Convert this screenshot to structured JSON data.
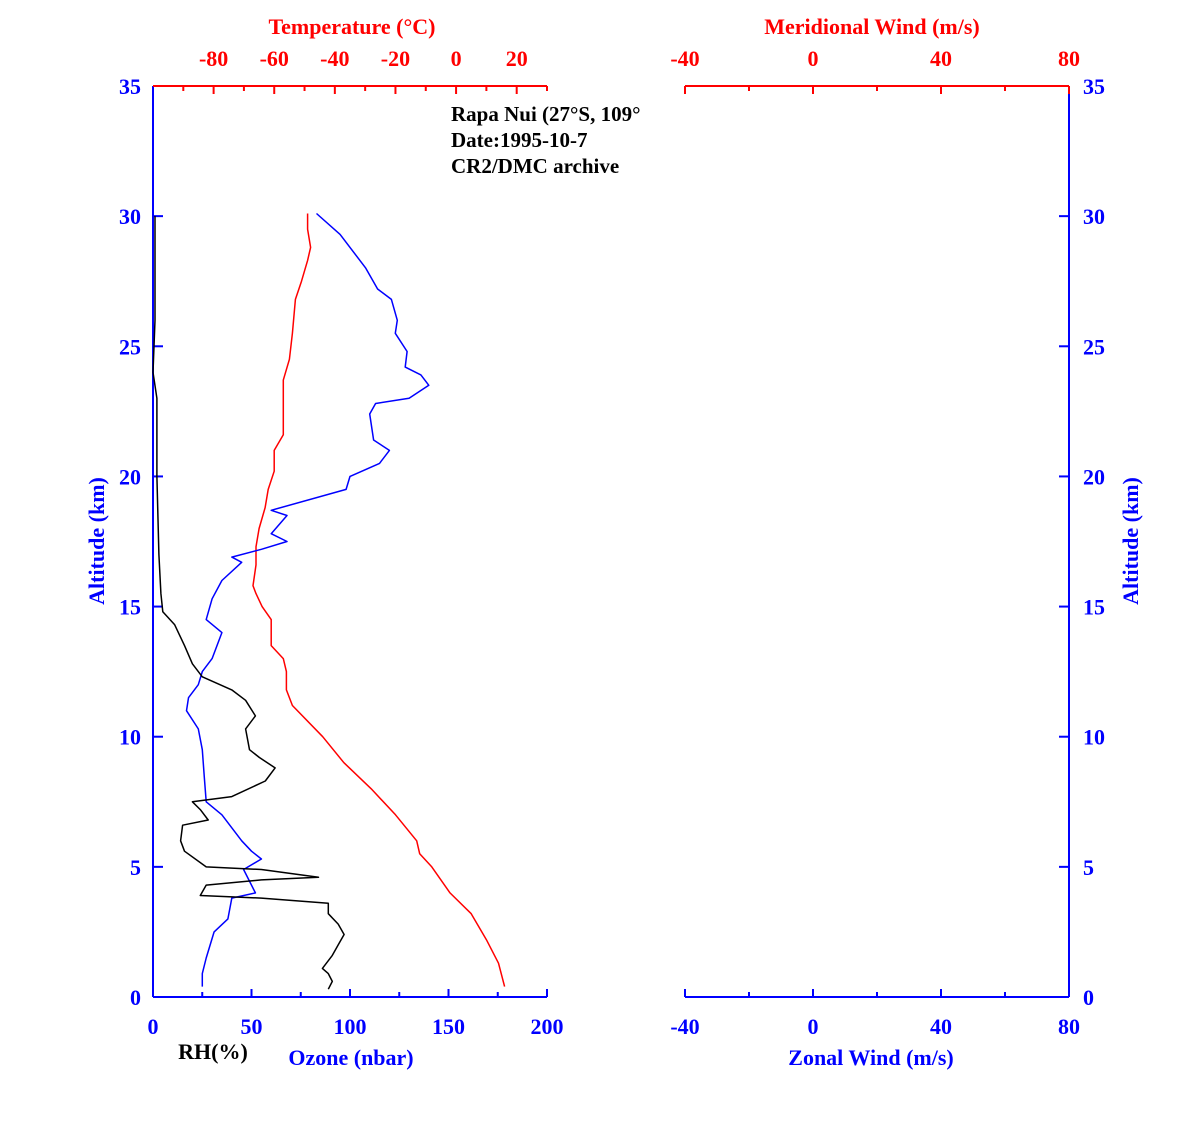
{
  "colors": {
    "blue": "#0000ff",
    "red": "#ff0000",
    "black": "#000000"
  },
  "annotation": {
    "station": "Rapa Nui (27°S, 109°",
    "date": "Date:1995-10-7",
    "archive": "CR2/DMC archive"
  },
  "chart_data": [
    {
      "type": "line",
      "panel": "left",
      "y_axis": {
        "label": "Altitude (km)",
        "range": [
          0,
          35
        ],
        "ticks": [
          "0",
          "5",
          "10",
          "15",
          "20",
          "25",
          "30",
          "35"
        ]
      },
      "x_bottom": {
        "label": "Ozone (nbar)",
        "secondary_label": "RH(%)",
        "range": [
          0,
          200
        ],
        "ticks": [
          "0",
          "50",
          "100",
          "150",
          "200"
        ]
      },
      "x_top": {
        "label": "Temperature (°C)",
        "range": [
          -100,
          30
        ],
        "ticks": [
          "-80",
          "-60",
          "-40",
          "-20",
          "0",
          "20"
        ]
      },
      "series": [
        {
          "color": "red",
          "scale": "temperature",
          "points": [
            [
              -49,
              30.1
            ],
            [
              -49,
              29.5
            ],
            [
              -48,
              28.8
            ],
            [
              -49,
              28.3
            ],
            [
              -51,
              27.5
            ],
            [
              -53,
              26.8
            ],
            [
              -54,
              25.5
            ],
            [
              -55,
              24.5
            ],
            [
              -57,
              23.7
            ],
            [
              -57,
              23.0
            ],
            [
              -57,
              22.3
            ],
            [
              -57,
              21.6
            ],
            [
              -60,
              21.0
            ],
            [
              -60,
              20.2
            ],
            [
              -62,
              19.5
            ],
            [
              -63,
              18.8
            ],
            [
              -65,
              18.0
            ],
            [
              -66,
              17.3
            ],
            [
              -66,
              16.6
            ],
            [
              -67,
              15.8
            ],
            [
              -66,
              15.5
            ],
            [
              -64,
              15.0
            ],
            [
              -61,
              14.5
            ],
            [
              -61,
              13.5
            ],
            [
              -57,
              13.0
            ],
            [
              -56,
              12.5
            ],
            [
              -56,
              11.8
            ],
            [
              -54,
              11.2
            ],
            [
              -44,
              10.0
            ],
            [
              -37,
              9.0
            ],
            [
              -28,
              8.0
            ],
            [
              -20,
              7.0
            ],
            [
              -13,
              6.0
            ],
            [
              -12,
              5.5
            ],
            [
              -8,
              5.0
            ],
            [
              -2,
              4.0
            ],
            [
              5,
              3.2
            ],
            [
              10,
              2.2
            ],
            [
              14,
              1.3
            ],
            [
              16,
              0.4
            ]
          ]
        },
        {
          "color": "blue",
          "scale": "bottom",
          "name": "Ozone (nbar)",
          "points": [
            [
              83,
              30.1
            ],
            [
              95,
              29.3
            ],
            [
              108,
              28.0
            ],
            [
              114,
              27.2
            ],
            [
              121,
              26.8
            ],
            [
              124,
              26.0
            ],
            [
              123,
              25.5
            ],
            [
              129,
              24.8
            ],
            [
              128,
              24.2
            ],
            [
              136,
              23.9
            ],
            [
              140,
              23.5
            ],
            [
              130,
              23.0
            ],
            [
              113,
              22.8
            ],
            [
              110,
              22.4
            ],
            [
              112,
              21.4
            ],
            [
              120,
              21.0
            ],
            [
              115,
              20.5
            ],
            [
              100,
              20.0
            ],
            [
              98,
              19.5
            ],
            [
              60,
              18.7
            ],
            [
              68,
              18.5
            ],
            [
              60,
              17.8
            ],
            [
              68,
              17.5
            ],
            [
              55,
              17.2
            ],
            [
              40,
              16.9
            ],
            [
              45,
              16.7
            ],
            [
              35,
              16.0
            ],
            [
              30,
              15.3
            ],
            [
              27,
              14.5
            ],
            [
              35,
              14.0
            ],
            [
              30,
              13.0
            ],
            [
              25,
              12.5
            ],
            [
              23,
              12.0
            ],
            [
              18,
              11.5
            ],
            [
              17,
              11.0
            ],
            [
              23,
              10.3
            ],
            [
              25,
              9.5
            ],
            [
              26,
              8.5
            ],
            [
              27,
              7.5
            ],
            [
              35,
              7.0
            ],
            [
              45,
              6.0
            ],
            [
              50,
              5.6
            ],
            [
              55,
              5.3
            ],
            [
              46,
              4.9
            ],
            [
              52,
              4.0
            ],
            [
              40,
              3.8
            ],
            [
              38,
              3.0
            ],
            [
              31,
              2.5
            ],
            [
              27,
              1.5
            ],
            [
              25,
              0.9
            ],
            [
              25,
              0.4
            ]
          ]
        },
        {
          "color": "black",
          "scale": "bottom",
          "name": "RH(%)",
          "points": [
            [
              1,
              30.0
            ],
            [
              1,
              28.5
            ],
            [
              1,
              26.0
            ],
            [
              0,
              24.0
            ],
            [
              2,
              23.0
            ],
            [
              2,
              20.0
            ],
            [
              3,
              17.0
            ],
            [
              4,
              15.5
            ],
            [
              5,
              14.8
            ],
            [
              11,
              14.3
            ],
            [
              16,
              13.5
            ],
            [
              20,
              12.8
            ],
            [
              25,
              12.3
            ],
            [
              40,
              11.8
            ],
            [
              47,
              11.4
            ],
            [
              52,
              10.8
            ],
            [
              47,
              10.3
            ],
            [
              49,
              9.5
            ],
            [
              54,
              9.2
            ],
            [
              62,
              8.8
            ],
            [
              57,
              8.3
            ],
            [
              40,
              7.7
            ],
            [
              20,
              7.5
            ],
            [
              24,
              7.2
            ],
            [
              28,
              6.8
            ],
            [
              15,
              6.6
            ],
            [
              14,
              6.0
            ],
            [
              16,
              5.6
            ],
            [
              27,
              5.0
            ],
            [
              55,
              4.9
            ],
            [
              84,
              4.6
            ],
            [
              55,
              4.5
            ],
            [
              27,
              4.3
            ],
            [
              24,
              3.9
            ],
            [
              55,
              3.8
            ],
            [
              89,
              3.6
            ],
            [
              89,
              3.2
            ],
            [
              94,
              2.8
            ],
            [
              97,
              2.4
            ],
            [
              94,
              2.0
            ],
            [
              91,
              1.6
            ],
            [
              86,
              1.1
            ],
            [
              89,
              0.9
            ],
            [
              91,
              0.6
            ],
            [
              89,
              0.3
            ]
          ]
        }
      ]
    },
    {
      "type": "line",
      "panel": "right",
      "y_axis": {
        "label": "Altitude (km)",
        "range": [
          0,
          35
        ],
        "ticks": [
          "0",
          "5",
          "10",
          "15",
          "20",
          "25",
          "30",
          "35"
        ]
      },
      "x_bottom": {
        "label": "Zonal Wind (m/s)",
        "range": [
          -40,
          80
        ],
        "ticks": [
          "-40",
          "0",
          "40",
          "80"
        ]
      },
      "x_top": {
        "label": "Meridional Wind (m/s)",
        "range": [
          -40,
          80
        ],
        "ticks": [
          "-40",
          "0",
          "40",
          "80"
        ]
      },
      "series": []
    }
  ]
}
